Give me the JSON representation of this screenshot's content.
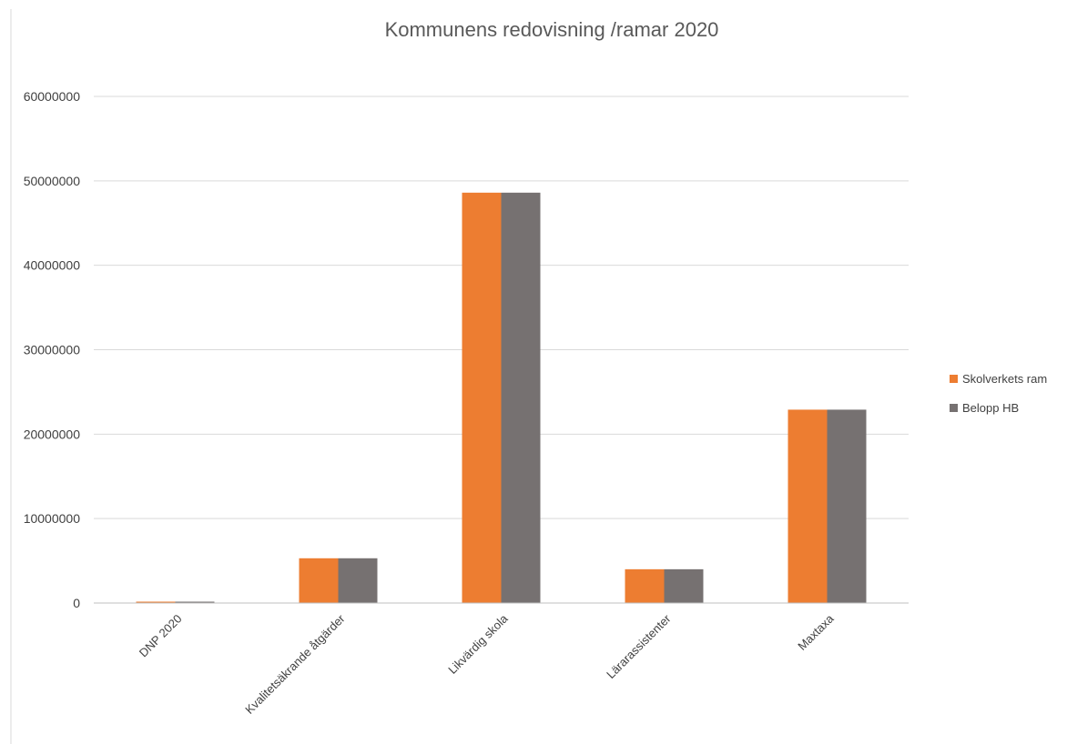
{
  "chart_data": {
    "type": "bar",
    "title": "Kommunens redovisning /ramar 2020",
    "xlabel": "",
    "ylabel": "",
    "categories": [
      "DNP 2020",
      "Kvalitetsäkrande åtgärder",
      "Likvärdig skola",
      "Lärarassistenter",
      "Maxtaxa"
    ],
    "series": [
      {
        "name": "Skolverkets ram",
        "color": "#ED7D31",
        "values": [
          150000,
          5300000,
          48600000,
          4000000,
          22900000
        ]
      },
      {
        "name": "Belopp HB",
        "color": "#767171",
        "values": [
          150000,
          5300000,
          48600000,
          4000000,
          22900000
        ]
      }
    ],
    "ylim": [
      0,
      60000000
    ],
    "yticks": [
      "0",
      "10000000",
      "20000000",
      "30000000",
      "40000000",
      "50000000",
      "60000000"
    ],
    "grid": true,
    "legend_position": "right"
  }
}
